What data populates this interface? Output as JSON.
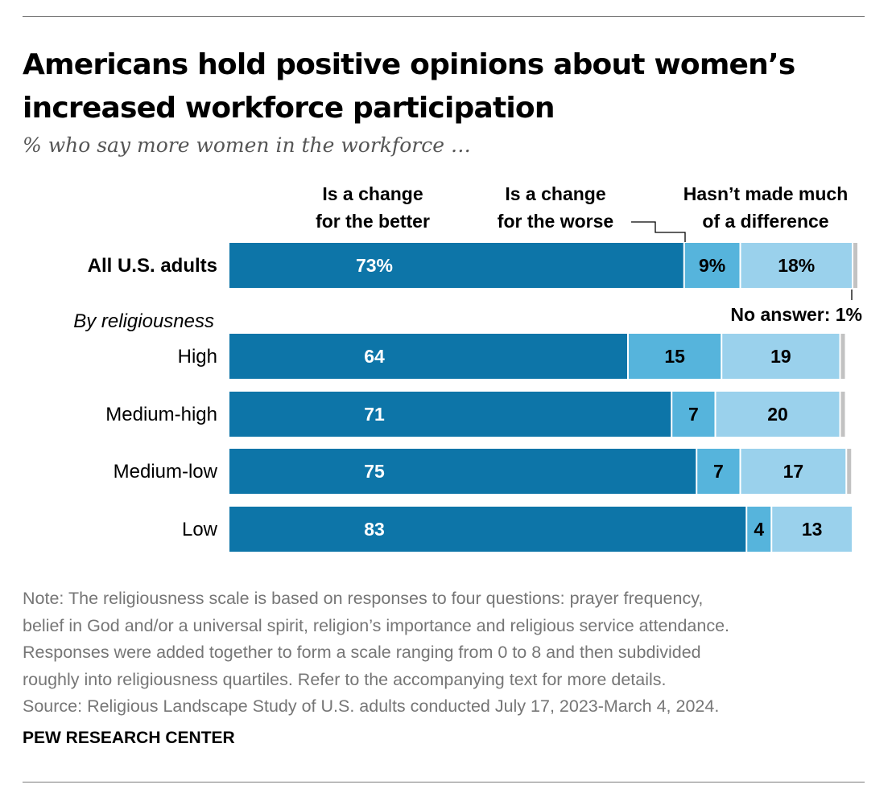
{
  "title": "Americans hold positive opinions about women’s increased workforce participation",
  "subtitle": "% who say more women in the workforce …",
  "colors": {
    "better": "#0d75a8",
    "worse": "#56b4dc",
    "no_difference": "#9ad1ec",
    "no_answer": "#c2c2c2"
  },
  "chart_data": {
    "type": "bar",
    "orientation": "horizontal",
    "stacked": true,
    "categories": [
      "All U.S. adults",
      "High",
      "Medium-high",
      "Medium-low",
      "Low"
    ],
    "group_label": "By religiousness",
    "series": [
      {
        "name": "Is a change for the better",
        "values": [
          73,
          64,
          71,
          75,
          83
        ]
      },
      {
        "name": "Is a change for the worse",
        "values": [
          9,
          15,
          7,
          7,
          4
        ]
      },
      {
        "name": "Hasn’t made much of a difference",
        "values": [
          18,
          19,
          20,
          17,
          13
        ]
      },
      {
        "name": "No answer",
        "values": [
          1,
          1,
          1,
          1,
          0
        ]
      }
    ],
    "data_labels": [
      [
        "73%",
        "9%",
        "18%",
        ""
      ],
      [
        "64",
        "15",
        "19",
        ""
      ],
      [
        "71",
        "7",
        "20",
        ""
      ],
      [
        "75",
        "7",
        "17",
        ""
      ],
      [
        "83",
        "4",
        "13",
        ""
      ]
    ],
    "legend_labels": {
      "better": [
        "Is a change",
        "for the better"
      ],
      "worse": [
        "Is a change",
        "for the worse"
      ],
      "no_difference": [
        "Hasn’t made much",
        "of a difference"
      ],
      "no_answer": "No answer: 1%"
    },
    "xlim": [
      0,
      100
    ]
  },
  "notes": [
    "Note: The religiousness scale is based on responses to four questions: prayer frequency,",
    "belief in God and/or a universal spirit, religion’s importance and religious service attendance.",
    "Responses were added together to form a scale ranging from 0 to 8 and then subdivided",
    "roughly into religiousness quartiles. Refer to the accompanying text for more details.",
    "Source: Religious Landscape Study of U.S. adults conducted July 17, 2023-March 4, 2024."
  ],
  "brand": "PEW RESEARCH CENTER"
}
